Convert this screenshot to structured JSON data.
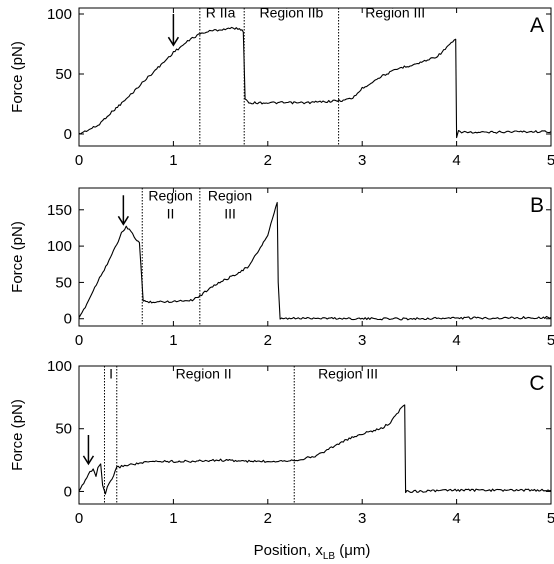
{
  "figure": {
    "shared_xlabel": "Position, x",
    "shared_xlabel_sub": "LB",
    "shared_xlabel_unit": " (μm)"
  },
  "chart_data": [
    {
      "type": "line",
      "panel_letter": "A",
      "ylabel": "Force (pN)",
      "xlim": [
        0,
        5
      ],
      "ylim": [
        -10,
        105
      ],
      "xticks": [
        "0",
        "1",
        "2",
        "3",
        "4",
        "5"
      ],
      "yticks": [
        0,
        50,
        100
      ],
      "grid": false,
      "color": "#000000",
      "series": [
        {
          "x": [
            0,
            0.2,
            0.3,
            0.5,
            0.7,
            0.9,
            1.0,
            1.1,
            1.2,
            1.3,
            1.4,
            1.5,
            1.6,
            1.7,
            1.74,
            1.76,
            1.8,
            2.0,
            2.2,
            2.4,
            2.6,
            2.8,
            2.9,
            3.0,
            3.2,
            3.4,
            3.6,
            3.8,
            3.99,
            4.0,
            4.02,
            4.2,
            4.6,
            5.0
          ],
          "y": [
            0,
            7,
            15,
            29,
            45,
            60,
            68,
            74,
            80,
            84,
            86,
            87,
            88,
            88,
            85,
            30,
            26,
            26,
            26,
            26,
            27,
            28,
            30,
            38,
            48,
            55,
            59,
            65,
            79,
            -3,
            2,
            1,
            2,
            2
          ]
        }
      ],
      "dividers": [
        1.28,
        1.75,
        2.75
      ],
      "region_labels": [
        {
          "lines": [
            "R IIa"
          ],
          "x": 1.5,
          "y": 97
        },
        {
          "lines": [
            "Region IIb"
          ],
          "x": 2.25,
          "y": 97
        },
        {
          "lines": [
            "Region III"
          ],
          "x": 3.35,
          "y": 97
        }
      ],
      "arrow": {
        "x": 1.0,
        "y_tip": 74,
        "y_tail": 100
      }
    },
    {
      "type": "line",
      "panel_letter": "B",
      "ylabel": "Force (pN)",
      "xlim": [
        0,
        5
      ],
      "ylim": [
        -10,
        180
      ],
      "xticks": [
        "0",
        "1",
        "2",
        "3",
        "4",
        "5"
      ],
      "yticks": [
        0,
        50,
        100,
        150
      ],
      "grid": false,
      "color": "#000000",
      "series": [
        {
          "x": [
            0,
            0.1,
            0.2,
            0.3,
            0.4,
            0.45,
            0.5,
            0.55,
            0.6,
            0.64,
            0.66,
            0.68,
            0.8,
            1.0,
            1.2,
            1.3,
            1.4,
            1.6,
            1.8,
            2.0,
            2.1,
            2.11,
            2.13,
            2.5,
            3.0,
            3.5,
            4.0,
            4.5,
            5.0
          ],
          "y": [
            0,
            25,
            52,
            76,
            102,
            118,
            126,
            120,
            110,
            105,
            65,
            24,
            23,
            24,
            26,
            33,
            44,
            57,
            72,
            115,
            160,
            50,
            0,
            1,
            0,
            0,
            1,
            1,
            2
          ]
        }
      ],
      "dividers": [
        0.67,
        1.28
      ],
      "region_labels": [
        {
          "lines": [
            "Region",
            "II"
          ],
          "x": 0.97,
          "y": 163
        },
        {
          "lines": [
            "Region",
            "III"
          ],
          "x": 1.6,
          "y": 163
        }
      ],
      "arrow": {
        "x": 0.47,
        "y_tip": 130,
        "y_tail": 170
      }
    },
    {
      "type": "line",
      "panel_letter": "C",
      "ylabel": "Force (pN)",
      "xlim": [
        0,
        5
      ],
      "ylim": [
        -10,
        100
      ],
      "xticks": [
        "0",
        "1",
        "2",
        "3",
        "4",
        "5"
      ],
      "yticks": [
        0,
        50,
        100
      ],
      "grid": false,
      "color": "#000000",
      "series": [
        {
          "x": [
            0,
            0.1,
            0.15,
            0.18,
            0.2,
            0.23,
            0.25,
            0.28,
            0.3,
            0.35,
            0.4,
            0.5,
            0.8,
            1.0,
            1.2,
            1.5,
            1.8,
            2.0,
            2.3,
            2.5,
            2.8,
            3.0,
            3.2,
            3.3,
            3.4,
            3.45,
            3.46,
            3.5,
            4.0,
            5.0
          ],
          "y": [
            0,
            14,
            18,
            12,
            19,
            22,
            5,
            -2,
            3,
            10,
            19,
            21,
            24,
            24,
            24,
            25,
            24,
            24,
            25,
            28,
            40,
            46,
            50,
            55,
            65,
            69,
            0,
            0,
            1,
            1
          ]
        }
      ],
      "dividers": [
        0.27,
        0.4,
        2.28
      ],
      "region_labels": [
        {
          "lines": [
            "I"
          ],
          "x": 0.34,
          "y": 90
        },
        {
          "lines": [
            "Region II"
          ],
          "x": 1.32,
          "y": 90
        },
        {
          "lines": [
            "Region III"
          ],
          "x": 2.85,
          "y": 90
        }
      ],
      "arrow": {
        "x": 0.1,
        "y_tip": 22,
        "y_tail": 45
      }
    }
  ]
}
